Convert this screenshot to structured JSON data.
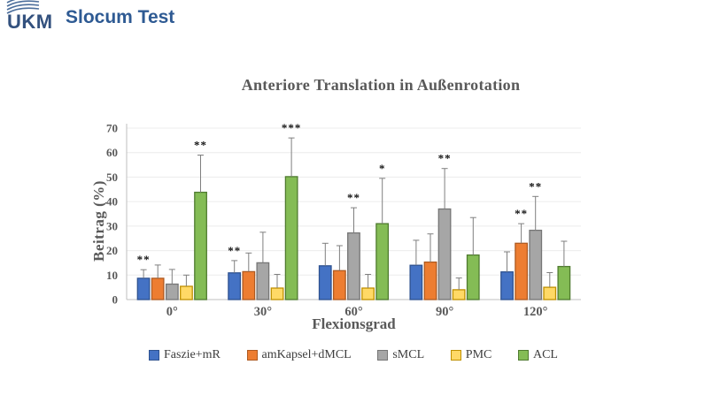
{
  "header": {
    "logo_text": "UKM",
    "page_title": "Slocum Test"
  },
  "chart_data": {
    "type": "bar",
    "title": "Anteriore Translation in Außenrotation",
    "xlabel": "Flexionsgrad",
    "ylabel": "Beitrag (%)",
    "ylim": [
      0,
      70
    ],
    "ytick_step": 10,
    "grid": true,
    "legend_position": "bottom",
    "error_bars": "upper",
    "categories": [
      "0°",
      "30°",
      "60°",
      "90°",
      "120°"
    ],
    "series": [
      {
        "name": "Faszie+mR",
        "color": "#4472C4",
        "border": "#2E5290",
        "values": [
          8.7,
          10.9,
          13.8,
          14.0,
          11.3
        ],
        "errors_up": [
          3.5,
          5.0,
          9.2,
          10.2,
          8.2
        ],
        "sig": [
          "**",
          "**",
          "",
          "",
          ""
        ]
      },
      {
        "name": "amKapsel+dMCL",
        "color": "#ED7D31",
        "border": "#AE5A21",
        "values": [
          8.7,
          11.4,
          11.8,
          15.3,
          23.0
        ],
        "errors_up": [
          5.4,
          7.6,
          10.2,
          11.5,
          8.0
        ],
        "sig": [
          "",
          "",
          "",
          "",
          "**"
        ]
      },
      {
        "name": "sMCL",
        "color": "#A6A6A6",
        "border": "#767676",
        "values": [
          6.3,
          15.0,
          27.2,
          37.0,
          28.3
        ],
        "errors_up": [
          6.0,
          12.5,
          10.3,
          16.5,
          13.8
        ],
        "sig": [
          "",
          "",
          "**",
          "**",
          "**"
        ]
      },
      {
        "name": "PMC",
        "color": "#FFD966",
        "border": "#BF9000",
        "values": [
          5.4,
          4.7,
          4.7,
          4.0,
          5.0
        ],
        "errors_up": [
          4.6,
          5.6,
          5.6,
          4.8,
          6.0
        ],
        "sig": [
          "",
          "",
          "",
          "",
          ""
        ]
      },
      {
        "name": "ACL",
        "color": "#84BC55",
        "border": "#4F7B2F",
        "values": [
          43.8,
          50.2,
          31.0,
          18.2,
          13.5
        ],
        "errors_up": [
          15.2,
          15.8,
          18.5,
          15.3,
          10.3
        ],
        "sig": [
          "**",
          "***",
          "*",
          "",
          ""
        ]
      }
    ],
    "style": {
      "axis_color": "#BFBFBF",
      "grid_color": "#ECECEC",
      "error_color": "#7F7F7F",
      "text_color": "#595959"
    }
  }
}
